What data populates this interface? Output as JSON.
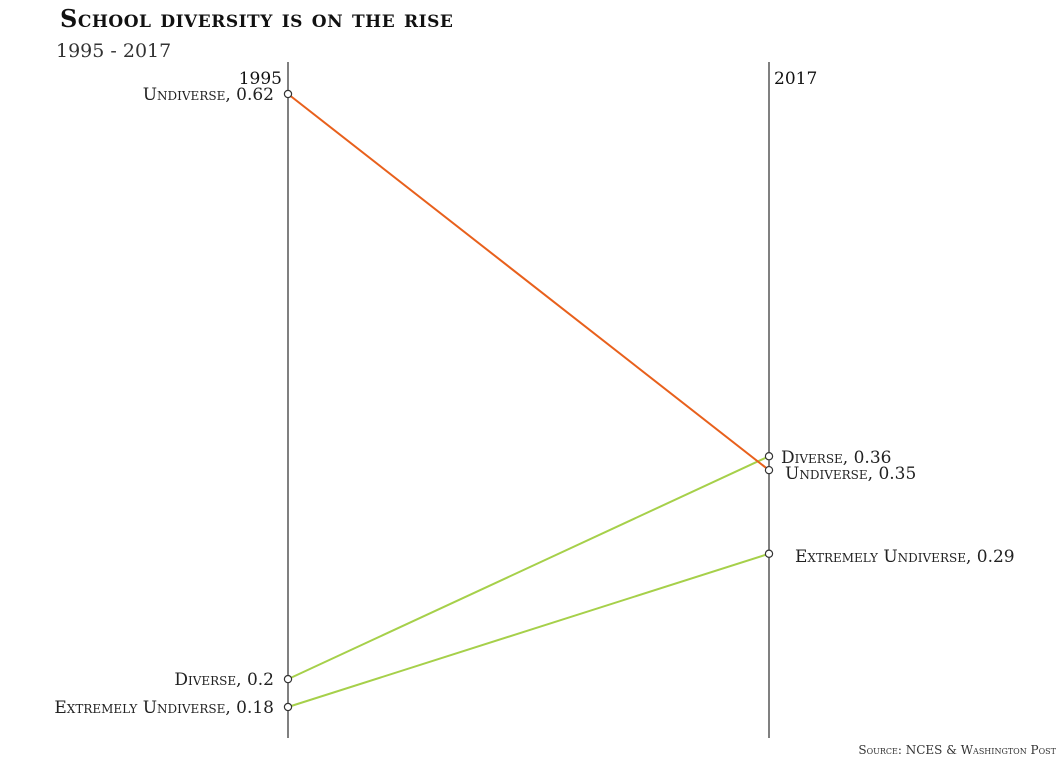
{
  "title": "School diversity is on the rise",
  "subtitle": "1995 - 2017",
  "source": "Source: NCES & Washington Post",
  "chart_data": {
    "type": "line",
    "chart_subtype": "slope",
    "x": [
      "1995",
      "2017"
    ],
    "year_labels": [
      "1995",
      "2017"
    ],
    "ylim": [
      0.18,
      0.62
    ],
    "grid": false,
    "legend": "none",
    "series": [
      {
        "name": "Undiverse",
        "values": [
          0.62,
          0.35
        ],
        "color": "#e8601c",
        "labels": [
          "Undiverse, 0.62",
          "Undiverse, 0.35"
        ]
      },
      {
        "name": "Diverse",
        "values": [
          0.2,
          0.36
        ],
        "color": "#a6d04a",
        "labels": [
          "Diverse, 0.2",
          "Diverse, 0.36"
        ]
      },
      {
        "name": "Extremely Undiverse",
        "values": [
          0.18,
          0.29
        ],
        "color": "#a6d04a",
        "labels": [
          "Extremely Undiverse, 0.18",
          "Extremely Undiverse, 0.29"
        ]
      }
    ]
  }
}
